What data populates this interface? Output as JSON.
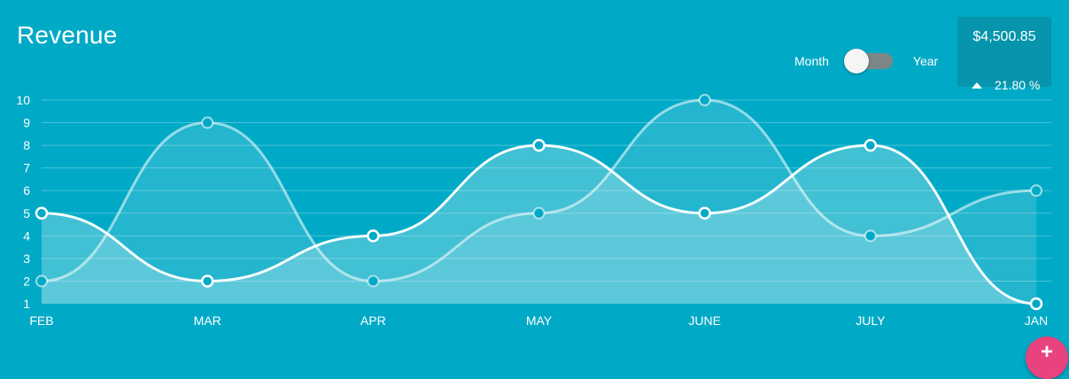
{
  "header": {
    "title": "Revenue",
    "toggle": {
      "left_label": "Month",
      "right_label": "Year",
      "selected": "Month"
    }
  },
  "stat": {
    "value": "$4,500.85",
    "change": "21.80 %",
    "direction_icon": "triangle-up-icon"
  },
  "fab": {
    "label": "+"
  },
  "colors": {
    "background": "#00aac6",
    "stat_box": "#0795ad",
    "line": "#ffffff",
    "fill": "#ffffff",
    "fab": "#e8437f"
  },
  "chart_data": {
    "type": "area",
    "categories": [
      "FEB",
      "MAR",
      "APR",
      "MAY",
      "JUNE",
      "JULY",
      "JAN"
    ],
    "series": [
      {
        "values": [
          2,
          9,
          2,
          5,
          10,
          4,
          6
        ],
        "point_style": "filled"
      },
      {
        "values": [
          5,
          2,
          4,
          8,
          5,
          8,
          1
        ],
        "point_style": "hollow"
      }
    ],
    "yticks": [
      1,
      2,
      3,
      4,
      5,
      6,
      7,
      8,
      9,
      10
    ],
    "ylim": [
      1,
      10
    ],
    "grid": true,
    "smooth": true,
    "legend": "none"
  }
}
